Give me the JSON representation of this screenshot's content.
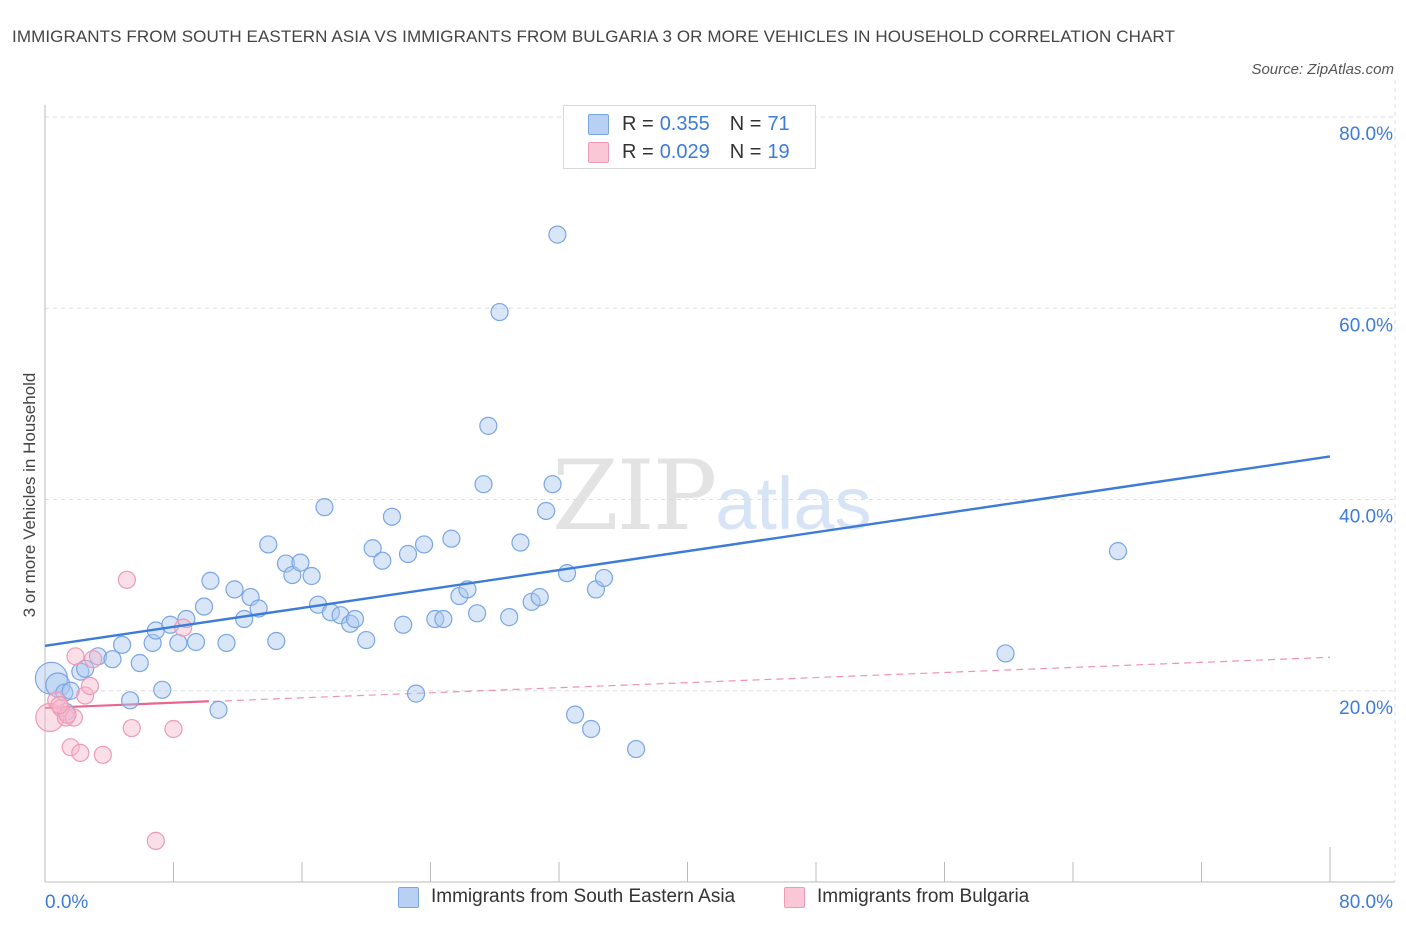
{
  "title": "IMMIGRANTS FROM SOUTH EASTERN ASIA VS IMMIGRANTS FROM BULGARIA 3 OR MORE VEHICLES IN HOUSEHOLD CORRELATION CHART",
  "source": "Source: ZipAtlas.com",
  "watermark": {
    "zip": "ZIP",
    "atlas": "atlas"
  },
  "colors": {
    "blue": "#3d7bd9",
    "blue_fill": "#a9c7f0",
    "pink": "#e8678f",
    "pink_fill": "#f6b9cc",
    "grid": "#dddddd"
  },
  "legend": {
    "rows": [
      {
        "r_label": "R = ",
        "r_value": "0.355",
        "n_label": "N = ",
        "n_value": "71"
      },
      {
        "r_label": "R = ",
        "r_value": "0.029",
        "n_label": "N = ",
        "n_value": "19"
      }
    ]
  },
  "bottom_legend": [
    "Immigrants from South Eastern Asia",
    "Immigrants from Bulgaria"
  ],
  "chart_data": {
    "type": "scatter",
    "title": "IMMIGRANTS FROM SOUTH EASTERN ASIA VS IMMIGRANTS FROM BULGARIA 3 OR MORE VEHICLES IN HOUSEHOLD CORRELATION CHART",
    "xlabel": "",
    "ylabel": "3 or more Vehicles in Household",
    "xlim": [
      0,
      80
    ],
    "ylim": [
      0,
      80
    ],
    "x_tick_labels": [
      "0.0%",
      "80.0%"
    ],
    "y_ticks": [
      20,
      40,
      60,
      80
    ],
    "y_tick_labels": [
      "20.0%",
      "40.0%",
      "60.0%",
      "80.0%"
    ],
    "grid": true,
    "legend_position": "top-center",
    "series": [
      {
        "name": "Immigrants from South Eastern Asia",
        "R": 0.355,
        "N": 71,
        "trend": {
          "x": [
            0,
            80
          ],
          "y": [
            24.7,
            44.5
          ]
        },
        "points": [
          [
            0.4,
            21.3
          ],
          [
            0.8,
            20.6
          ],
          [
            1.2,
            19.8
          ],
          [
            1.3,
            17.8
          ],
          [
            2.2,
            22.0
          ],
          [
            2.5,
            22.3
          ],
          [
            3.3,
            23.6
          ],
          [
            4.2,
            23.3
          ],
          [
            4.8,
            24.8
          ],
          [
            5.3,
            19.0
          ],
          [
            5.9,
            22.9
          ],
          [
            6.7,
            25.0
          ],
          [
            6.9,
            26.3
          ],
          [
            7.3,
            20.1
          ],
          [
            7.8,
            26.9
          ],
          [
            8.3,
            25.0
          ],
          [
            8.8,
            27.5
          ],
          [
            9.4,
            25.1
          ],
          [
            9.9,
            28.8
          ],
          [
            10.3,
            31.5
          ],
          [
            10.8,
            18.0
          ],
          [
            11.3,
            25.0
          ],
          [
            11.8,
            30.6
          ],
          [
            12.4,
            27.5
          ],
          [
            12.8,
            29.8
          ],
          [
            13.3,
            28.6
          ],
          [
            13.9,
            35.3
          ],
          [
            14.4,
            25.2
          ],
          [
            15.0,
            33.3
          ],
          [
            15.4,
            32.1
          ],
          [
            15.9,
            33.4
          ],
          [
            16.6,
            32.0
          ],
          [
            17.0,
            29.0
          ],
          [
            17.4,
            39.2
          ],
          [
            17.8,
            28.2
          ],
          [
            18.4,
            27.9
          ],
          [
            19.0,
            27.0
          ],
          [
            19.3,
            27.5
          ],
          [
            20.0,
            25.3
          ],
          [
            20.4,
            34.9
          ],
          [
            21.0,
            33.6
          ],
          [
            21.6,
            38.2
          ],
          [
            22.3,
            26.9
          ],
          [
            22.6,
            34.3
          ],
          [
            23.1,
            19.7
          ],
          [
            23.6,
            35.3
          ],
          [
            24.3,
            27.5
          ],
          [
            24.8,
            27.5
          ],
          [
            25.3,
            35.9
          ],
          [
            25.8,
            29.9
          ],
          [
            26.3,
            30.6
          ],
          [
            26.9,
            28.1
          ],
          [
            27.3,
            41.6
          ],
          [
            27.6,
            47.7
          ],
          [
            28.3,
            59.6
          ],
          [
            28.9,
            27.7
          ],
          [
            29.6,
            35.5
          ],
          [
            30.3,
            29.3
          ],
          [
            30.8,
            29.8
          ],
          [
            31.2,
            38.8
          ],
          [
            31.6,
            41.6
          ],
          [
            31.9,
            67.7
          ],
          [
            32.5,
            32.3
          ],
          [
            33.0,
            17.5
          ],
          [
            34.0,
            16.0
          ],
          [
            34.3,
            30.6
          ],
          [
            34.8,
            31.8
          ],
          [
            36.8,
            13.9
          ],
          [
            59.8,
            23.9
          ],
          [
            66.8,
            34.6
          ],
          [
            1.6,
            20.0
          ]
        ]
      },
      {
        "name": "Immigrants from Bulgaria",
        "R": 0.029,
        "N": 19,
        "trend": {
          "x": [
            0,
            10.2
          ],
          "y": [
            18.2,
            18.9
          ]
        },
        "trend_extended": {
          "x": [
            0,
            80
          ],
          "y": [
            18.2,
            23.5
          ]
        },
        "points": [
          [
            0.3,
            17.2
          ],
          [
            0.7,
            19.0
          ],
          [
            1.0,
            18.2
          ],
          [
            1.3,
            17.2
          ],
          [
            1.6,
            14.1
          ],
          [
            1.8,
            17.2
          ],
          [
            1.9,
            23.6
          ],
          [
            2.2,
            13.5
          ],
          [
            2.5,
            19.5
          ],
          [
            2.8,
            20.5
          ],
          [
            3.0,
            23.3
          ],
          [
            3.6,
            13.3
          ],
          [
            5.1,
            31.6
          ],
          [
            5.4,
            16.1
          ],
          [
            6.9,
            4.3
          ],
          [
            8.0,
            16.0
          ],
          [
            8.6,
            26.6
          ],
          [
            1.4,
            17.5
          ],
          [
            0.9,
            18.5
          ]
        ]
      }
    ]
  }
}
